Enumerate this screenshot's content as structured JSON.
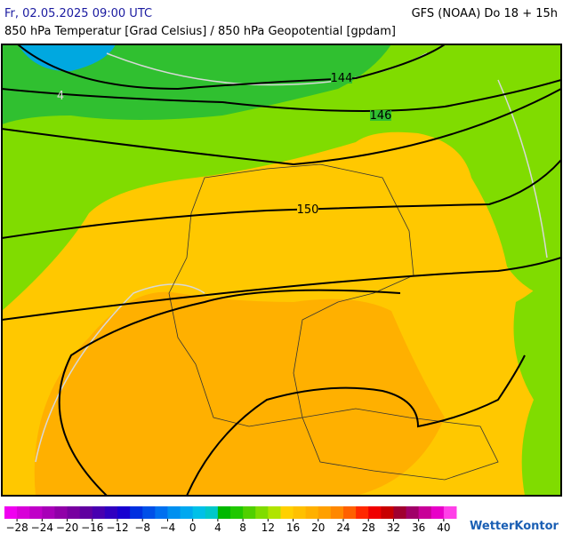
{
  "header": {
    "datetime": "Fr, 02.05.2025 09:00 UTC",
    "model": "GFS (NOAA) Do 18 + 15h",
    "subtitle": "850 hPa Temperatur [Grad Celsius] / 850 hPa Geopotential [gpdam]"
  },
  "map": {
    "contour_labels": [
      "144",
      "146",
      "150",
      "4"
    ]
  },
  "colorbar": {
    "range": [
      -30,
      42
    ],
    "colors": [
      "#f000f0",
      "#d800d8",
      "#c000c8",
      "#a800b8",
      "#9000a8",
      "#7800a0",
      "#6000a0",
      "#4800b0",
      "#3000c0",
      "#1800d0",
      "#0030e0",
      "#0050e8",
      "#0070f0",
      "#0090f0",
      "#00a8f0",
      "#00c0e8",
      "#00c8c8",
      "#00b800",
      "#20c800",
      "#50d000",
      "#80dc00",
      "#b0e400",
      "#ffd000",
      "#ffc000",
      "#ffb000",
      "#ffa000",
      "#ff8800",
      "#ff6000",
      "#ff2800",
      "#f00000",
      "#c80000",
      "#a00030",
      "#a00068",
      "#c80098",
      "#e800c8",
      "#ff40e8"
    ],
    "ticks": [
      {
        "value": -28,
        "label": "−28"
      },
      {
        "value": -24,
        "label": "−24"
      },
      {
        "value": -20,
        "label": "−20"
      },
      {
        "value": -16,
        "label": "−16"
      },
      {
        "value": -12,
        "label": "−12"
      },
      {
        "value": -8,
        "label": "−8"
      },
      {
        "value": -4,
        "label": "−4"
      },
      0,
      4,
      8,
      12,
      16,
      20,
      24,
      28,
      32,
      36,
      40
    ]
  },
  "brand": "WetterKontor"
}
